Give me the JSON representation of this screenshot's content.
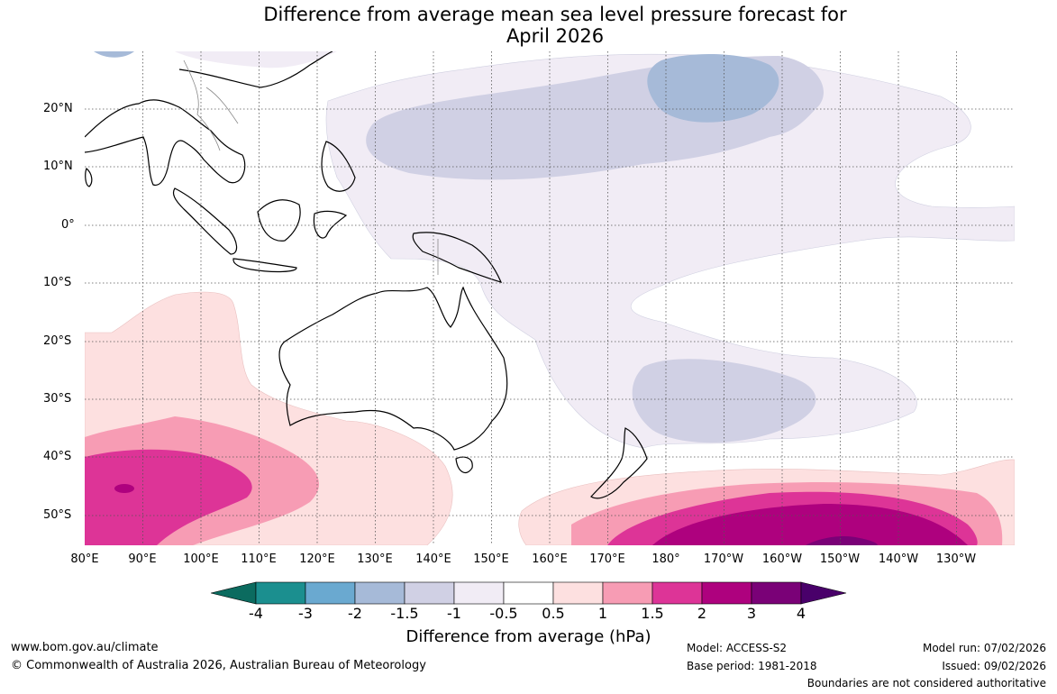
{
  "title_line1": "Difference from average mean sea level pressure forecast for",
  "title_line2": "April 2026",
  "lat_labels": [
    "20°N",
    "10°N",
    "0°",
    "10°S",
    "20°S",
    "30°S",
    "40°S",
    "50°S"
  ],
  "lon_labels": [
    "80°E",
    "90°E",
    "100°E",
    "110°E",
    "120°E",
    "130°E",
    "140°E",
    "150°E",
    "160°E",
    "170°E",
    "180°",
    "170°W",
    "160°W",
    "150°W",
    "140°W",
    "130°W"
  ],
  "colorbar": {
    "title": "Difference from average (hPa)",
    "ticks": [
      "-4",
      "-3",
      "-2",
      "-1.5",
      "-1",
      "-0.5",
      "0.5",
      "1",
      "1.5",
      "2",
      "3",
      "4"
    ],
    "colors": [
      "#0b6b5f",
      "#1b8f8f",
      "#6aa9d0",
      "#a6bad8",
      "#d0d0e4",
      "#f1ecf5",
      "#ffffff",
      "#fde0e0",
      "#f79cb4",
      "#dd3497",
      "#ae017e",
      "#7a0177",
      "#49006a"
    ]
  },
  "footer": {
    "website": "www.bom.gov.au/climate",
    "copyright": "© Commonwealth of Australia 2026, Australian Bureau of Meteorology",
    "model": "Model: ACCESS-S2",
    "base_period": "Base period: 1981-2018",
    "model_run": "Model run: 07/02/2026",
    "issued": "Issued: 09/02/2026",
    "disclaimer": "Boundaries are not considered authoritative"
  }
}
